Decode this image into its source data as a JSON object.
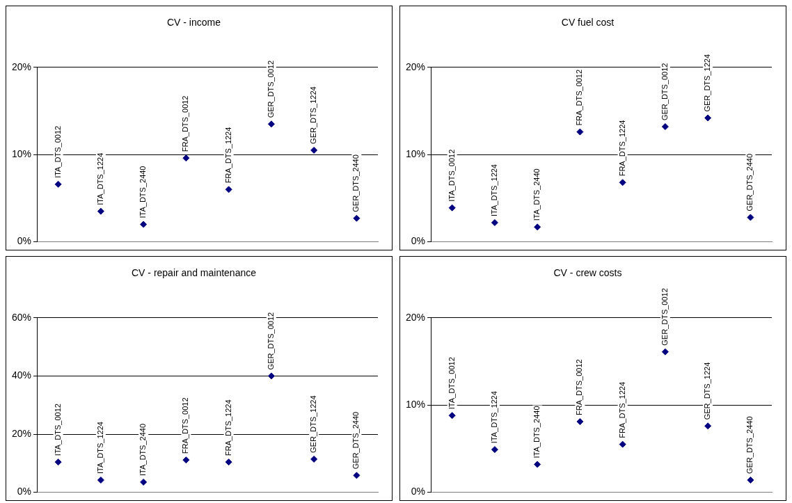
{
  "chart_data": [
    {
      "type": "scatter",
      "title": "CV - income",
      "categories": [
        "ITA_DTS_0012",
        "ITA_DTS_1224",
        "ITA_DTS_2440",
        "FRA_DTS_0012",
        "FRA_DTS_1224",
        "GER_DTS_0012",
        "GER_DTS_1224",
        "GER_DTS_2440"
      ],
      "values": [
        6.6,
        3.5,
        2.0,
        9.6,
        6.0,
        13.5,
        10.5,
        2.7
      ],
      "color": "#000080",
      "marker": "diamond",
      "ylim": [
        0,
        20
      ],
      "yticks": [
        {
          "value": 0,
          "label": "0%"
        },
        {
          "value": 10,
          "label": "10%"
        },
        {
          "value": 20,
          "label": "20%"
        }
      ],
      "grid": "y",
      "tick_labels": "y"
    },
    {
      "type": "scatter",
      "title": "CV fuel cost",
      "categories": [
        "ITA_DTS_0012",
        "ITA_DTS_1224",
        "ITA_DTS_2440",
        "FRA_DTS_0012",
        "FRA_DTS_1224",
        "GER_DTS_0012",
        "GER_DTS_1224",
        "GER_DTS_2440"
      ],
      "values": [
        3.9,
        2.2,
        1.7,
        12.6,
        6.8,
        13.2,
        14.2,
        2.8
      ],
      "color": "#000080",
      "marker": "diamond",
      "ylim": [
        0,
        20
      ],
      "yticks": [
        {
          "value": 0,
          "label": "0%"
        },
        {
          "value": 10,
          "label": "10%"
        },
        {
          "value": 20,
          "label": "20%"
        }
      ],
      "grid": "y",
      "tick_labels": "y"
    },
    {
      "type": "scatter",
      "title": "CV - repair and maintenance",
      "categories": [
        "ITA_DTS_0012",
        "ITA_DTS_1224",
        "ITA_DTS_2440",
        "FRA_DTS_0012",
        "FRA_DTS_1224",
        "GER_DTS_0012",
        "GER_DTS_1224",
        "GER_DTS_2440"
      ],
      "values": [
        10.4,
        4.2,
        3.5,
        11.1,
        10.4,
        40,
        11.4,
        5.8
      ],
      "color": "#000080",
      "marker": "diamond",
      "ylim": [
        0,
        60
      ],
      "yticks": [
        {
          "value": 0,
          "label": "0%"
        },
        {
          "value": 20,
          "label": "20%"
        },
        {
          "value": 40,
          "label": "40%"
        },
        {
          "value": 60,
          "label": "60%"
        }
      ],
      "grid": "y",
      "tick_labels": "y"
    },
    {
      "type": "scatter",
      "title": "CV - crew costs",
      "categories": [
        "ITA_DTS_0012",
        "ITA_DTS_1224",
        "ITA_DTS_2440",
        "FRA_DTS_0012",
        "FRA_DTS_1224",
        "GER_DTS_0012",
        "GER_DTS_1224",
        "GER_DTS_2440"
      ],
      "values": [
        8.8,
        4.9,
        3.2,
        8.1,
        5.5,
        16.1,
        7.6,
        1.4
      ],
      "color": "#000080",
      "marker": "diamond",
      "ylim": [
        0,
        20
      ],
      "yticks": [
        {
          "value": 0,
          "label": "0%"
        },
        {
          "value": 10,
          "label": "10%"
        },
        {
          "value": 20,
          "label": "20%"
        }
      ],
      "grid": "y",
      "tick_labels": "y"
    }
  ]
}
